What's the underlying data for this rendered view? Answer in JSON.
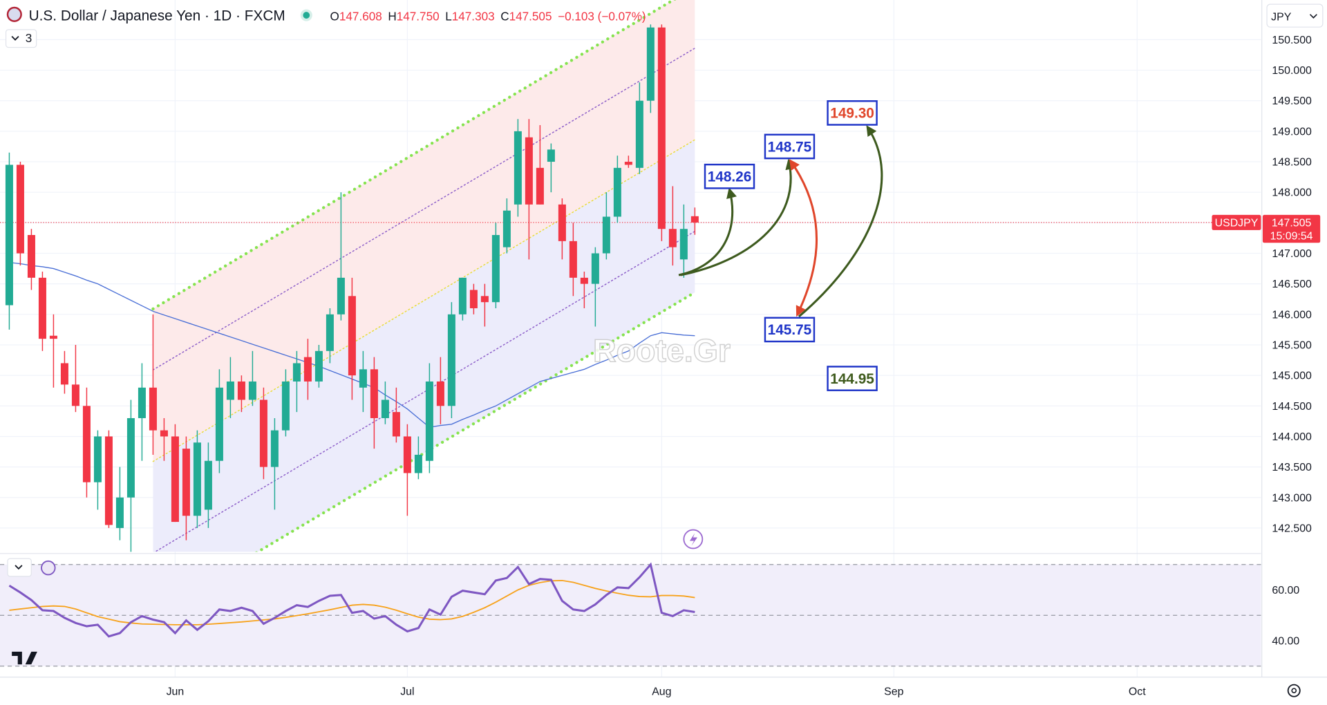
{
  "chart_data": {
    "type": "candlestick",
    "title": "U.S. Dollar / Japanese Yen · 1D · FXCM",
    "ohlc_header": {
      "o_label": "O",
      "o": "147.608",
      "h_label": "H",
      "h": "147.750",
      "l_label": "L",
      "l": "147.303",
      "c_label": "C",
      "c": "147.505",
      "change": "−0.103 (−0.07%)"
    },
    "indicator_count": "3",
    "currency": "JPY",
    "symbol": "USDJPY",
    "last_price": {
      "value": 147.505,
      "label": "147.505"
    },
    "countdown": "15:09:54",
    "watermark": "Roote.Gr",
    "up_color": "#22ab94",
    "down_color": "#f23645",
    "grid": true,
    "xlim": [
      -0.84,
      113.2
    ],
    "xticks": [
      {
        "value": 15,
        "label": "Jun"
      },
      {
        "value": 36,
        "label": "Jul"
      },
      {
        "value": 59,
        "label": "Aug"
      },
      {
        "value": 80,
        "label": "Sep"
      },
      {
        "value": 102,
        "label": "Oct"
      }
    ],
    "ylim": [
      142.11,
      151.15
    ],
    "yticks": [
      {
        "value": 142.5,
        "label": "142.500"
      },
      {
        "value": 143,
        "label": "143.000"
      },
      {
        "value": 143.5,
        "label": "143.500"
      },
      {
        "value": 144,
        "label": "144.000"
      },
      {
        "value": 144.5,
        "label": "144.500"
      },
      {
        "value": 145,
        "label": "145.000"
      },
      {
        "value": 145.5,
        "label": "145.500"
      },
      {
        "value": 146,
        "label": "146.000"
      },
      {
        "value": 146.5,
        "label": "146.500"
      },
      {
        "value": 147,
        "label": "147.000"
      },
      {
        "value": 147.5,
        "label": "147.500"
      },
      {
        "value": 148,
        "label": "148.000"
      },
      {
        "value": 148.5,
        "label": "148.500"
      },
      {
        "value": 149,
        "label": "149.000"
      },
      {
        "value": 149.5,
        "label": "149.500"
      },
      {
        "value": 150,
        "label": "150.000"
      },
      {
        "value": 150.5,
        "label": "150.500"
      }
    ],
    "candles": {
      "open": [
        146.15,
        148.45,
        147.3,
        146.6,
        145.65,
        145.2,
        144.85,
        144.5,
        143.25,
        144.0,
        142.5,
        143.0,
        144.3,
        144.8,
        144.1,
        144.0,
        143.8,
        142.7,
        142.8,
        143.6,
        144.6,
        144.9,
        144.6,
        144.6,
        143.5,
        144.1,
        144.9,
        145.3,
        144.9,
        145.4,
        146.0,
        146.3,
        144.8,
        145.1,
        144.3,
        144.4,
        144.0,
        143.4,
        143.6,
        144.9,
        144.5,
        146.0,
        146.4,
        146.3,
        146.2,
        147.1,
        147.8,
        148.9,
        148.4,
        148.5,
        147.8,
        147.2,
        146.6,
        146.5,
        147.0,
        147.6,
        148.5,
        148.4,
        149.5,
        150.7,
        147.4,
        146.9,
        147.608
      ],
      "high": [
        148.65,
        148.5,
        147.4,
        146.7,
        146.0,
        145.4,
        145.5,
        144.8,
        144.1,
        144.1,
        143.5,
        144.6,
        145.2,
        146.0,
        144.3,
        144.2,
        144.0,
        144.1,
        143.9,
        145.1,
        145.3,
        145.0,
        145.4,
        144.8,
        144.3,
        145.1,
        145.4,
        145.6,
        145.5,
        146.1,
        148.0,
        146.6,
        145.4,
        145.3,
        144.9,
        144.8,
        144.2,
        144.0,
        145.2,
        145.3,
        146.2,
        146.6,
        146.5,
        146.5,
        147.5,
        147.9,
        149.2,
        149.2,
        149.1,
        148.8,
        147.9,
        147.5,
        146.7,
        147.1,
        148.0,
        148.6,
        148.6,
        149.8,
        150.75,
        150.75,
        148.1,
        147.8,
        147.75
      ],
      "low": [
        145.75,
        146.8,
        146.4,
        145.4,
        144.8,
        144.7,
        144.4,
        143.0,
        142.8,
        142.5,
        142.3,
        142.1,
        143.6,
        143.7,
        143.6,
        142.6,
        142.3,
        142.5,
        142.5,
        143.4,
        144.3,
        144.4,
        144.5,
        143.3,
        142.8,
        144.0,
        144.4,
        144.6,
        144.8,
        145.2,
        145.9,
        144.6,
        144.4,
        143.8,
        144.2,
        143.9,
        142.7,
        143.3,
        143.4,
        144.2,
        144.3,
        145.9,
        146.0,
        145.8,
        146.1,
        147.0,
        147.6,
        146.9,
        147.8,
        148.0,
        146.9,
        146.3,
        146.1,
        145.8,
        146.9,
        147.5,
        148.4,
        148.3,
        149.3,
        147.2,
        146.8,
        146.6,
        147.303
      ],
      "close": [
        148.45,
        147.0,
        146.6,
        145.6,
        145.6,
        144.85,
        144.5,
        143.25,
        144.0,
        142.55,
        143.0,
        144.3,
        144.8,
        144.1,
        144.0,
        142.6,
        142.7,
        143.9,
        143.6,
        144.8,
        144.9,
        144.6,
        144.9,
        143.5,
        144.1,
        144.9,
        145.2,
        144.9,
        145.4,
        146.0,
        146.6,
        145.0,
        145.1,
        144.3,
        144.6,
        144.0,
        143.4,
        143.7,
        144.9,
        144.5,
        146.0,
        146.6,
        146.1,
        146.2,
        147.3,
        147.7,
        149.0,
        147.8,
        147.8,
        148.7,
        147.2,
        146.6,
        146.5,
        147.0,
        147.6,
        148.4,
        148.45,
        149.5,
        150.7,
        147.4,
        147.1,
        147.4,
        147.505
      ]
    },
    "ma": {
      "color": "#4a6fd6",
      "values": [
        146.85,
        146.83,
        146.8,
        146.78,
        146.75,
        146.69,
        146.63,
        146.56,
        146.5,
        146.41,
        146.32,
        146.23,
        146.14,
        146.05,
        145.99,
        145.93,
        145.87,
        145.81,
        145.75,
        145.69,
        145.63,
        145.57,
        145.51,
        145.45,
        145.39,
        145.33,
        145.27,
        145.21,
        145.15,
        145.08,
        145.01,
        144.94,
        144.87,
        144.8,
        144.68,
        144.57,
        144.45,
        144.3,
        144.15,
        144.18,
        144.2,
        144.28,
        144.35,
        144.43,
        144.5,
        144.6,
        144.7,
        144.8,
        144.9,
        144.95,
        145.0,
        145.05,
        145.1,
        145.18,
        145.25,
        145.33,
        145.4,
        145.53,
        145.65,
        145.7,
        145.68,
        145.66,
        145.65
      ]
    },
    "channel": {
      "start": 13,
      "end": 62,
      "lines": [
        [
          146.09,
          151.36
        ],
        [
          145.09,
          150.36
        ],
        [
          143.59,
          148.86
        ],
        [
          142.09,
          147.36
        ],
        [
          141.09,
          146.36
        ]
      ],
      "colors": [
        "#86e34f",
        "#8d5fc9",
        "#e8dc3a",
        "#8d5fc9",
        "#86e34f"
      ],
      "upper_fill": "#fdeaea",
      "lower_fill": "#ececfb"
    },
    "annotations": [
      {
        "value": 148.26,
        "color": "#1f35c8"
      },
      {
        "value": 148.75,
        "color": "#1f35c8"
      },
      {
        "value": 149.3,
        "label": "149.30",
        "color": "#e0462b"
      },
      {
        "value": 145.75,
        "color": "#1f35c8"
      },
      {
        "value": 144.95,
        "color": "#3e5a1c"
      }
    ],
    "rsi": {
      "ylim": [
        25.7,
        74
      ],
      "yticks": [
        {
          "value": 60,
          "label": "60.00"
        },
        {
          "value": 40,
          "label": "40.00"
        }
      ],
      "levels": [
        70,
        50,
        30
      ],
      "color": "#7e57c2",
      "values": [
        61.7,
        59,
        56,
        52,
        51.7,
        49,
        47,
        45.7,
        46.3,
        41.7,
        43,
        47.3,
        49.7,
        48.3,
        47.3,
        43,
        48,
        44.3,
        47.7,
        52.3,
        51.7,
        53,
        51.7,
        46.7,
        49,
        51.7,
        54,
        53.3,
        55.7,
        57.7,
        58,
        51,
        51.7,
        48.7,
        49.7,
        46.3,
        43.7,
        45,
        52.3,
        50.3,
        57.3,
        59.7,
        59,
        58.3,
        63.7,
        64.7,
        69,
        62.3,
        64.3,
        64,
        55.7,
        52.3,
        51.7,
        54.3,
        58,
        61,
        60.7,
        65,
        70,
        51,
        49.7,
        52,
        51.3
      ],
      "ma": {
        "color": "#f7a21b",
        "values": [
          52,
          52.5,
          53,
          53.5,
          53.7,
          53.5,
          52.5,
          51,
          49.5,
          48.5,
          47.5,
          47,
          46.6,
          46.5,
          46.4,
          46.3,
          46.3,
          46.3,
          46.5,
          46.8,
          47.1,
          47.4,
          47.8,
          48.2,
          48.6,
          49.2,
          49.9,
          50.6,
          51.4,
          52.2,
          53.1,
          54,
          54.3,
          54,
          53.2,
          52,
          50.6,
          49.3,
          48.5,
          48.3,
          48.6,
          49.6,
          51.2,
          53,
          55.2,
          57.6,
          60,
          61.8,
          62.9,
          63.6,
          63.7,
          63,
          61.8,
          60.6,
          59.6,
          58.7,
          57.9,
          57.4,
          57.3,
          57.8,
          57.8,
          57.6,
          57
        ]
      }
    }
  }
}
